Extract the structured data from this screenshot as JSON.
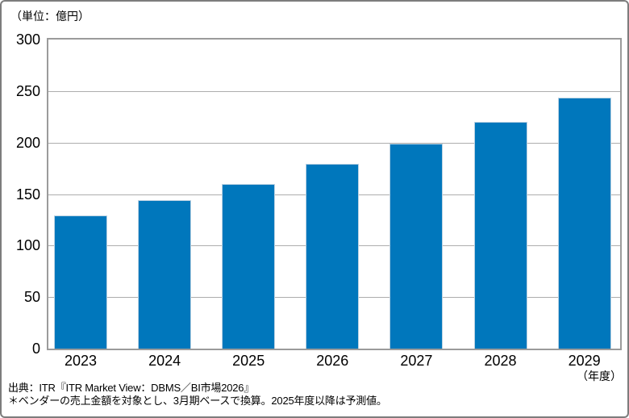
{
  "header": {
    "unit_label": "（単位：億円）"
  },
  "x_axis": {
    "suffix_label": "（年度）"
  },
  "footer": {
    "source": "出典：ITR『ITR Market View：DBMS／BI市場2026』",
    "note": "＊ベンダーの売上金額を対象とし、3月期ベースで換算。2025年度以降は予測値。"
  },
  "colors": {
    "bar": "#0077BC",
    "grid": "#ADADAD",
    "axis": "#9B9B9B",
    "text": "#000000"
  },
  "chart_data": {
    "type": "bar",
    "categories": [
      "2023",
      "2024",
      "2025",
      "2026",
      "2027",
      "2028",
      "2029"
    ],
    "values": [
      129,
      144,
      160,
      179,
      199,
      220,
      244
    ],
    "title": "",
    "xlabel": "（年度）",
    "ylabel": "（単位：億円）",
    "ylim": [
      0,
      300
    ],
    "ytick_interval": 50,
    "grid": true,
    "legend": false,
    "bar_color": "#0077BC"
  }
}
